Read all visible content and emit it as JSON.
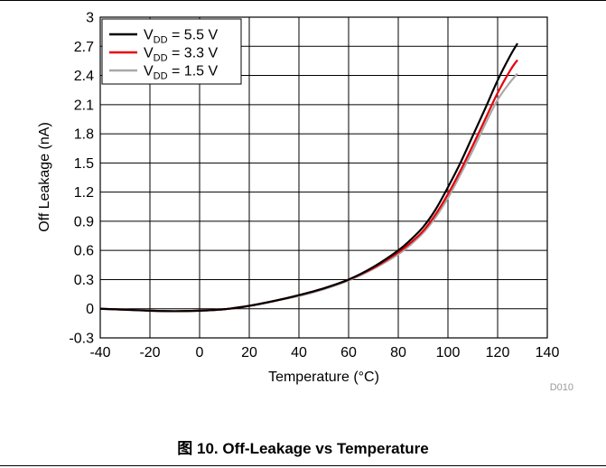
{
  "figure": {
    "caption": "图 10. Off-Leakage vs Temperature",
    "code": "D010"
  },
  "chart_data": {
    "type": "line",
    "title": "",
    "xlabel": "Temperature (°C)",
    "ylabel": "Off Leakage (nA)",
    "xlim": [
      -40,
      140
    ],
    "ylim": [
      -0.3,
      3
    ],
    "xticks": [
      -40,
      -20,
      0,
      20,
      40,
      60,
      80,
      100,
      120,
      140
    ],
    "yticks": [
      -0.3,
      0,
      0.3,
      0.6,
      0.9,
      1.2,
      1.5,
      1.8,
      2.1,
      2.4,
      2.7,
      3
    ],
    "ytick_labels": [
      "-0.3",
      "0",
      "0.3",
      "0.6",
      "0.9",
      "1.2",
      "1.5",
      "1.8",
      "2.1",
      "2.4",
      "2.7",
      "3"
    ],
    "grid": true,
    "legend_position": "top-left",
    "series": [
      {
        "name": "VDD = 5.5 V",
        "label_main": "V",
        "label_sub": "DD",
        "label_rest": " = 5.5 V",
        "color": "#000000",
        "x": [
          -40,
          -30,
          -20,
          -10,
          0,
          10,
          20,
          30,
          40,
          50,
          60,
          70,
          80,
          85,
          90,
          95,
          100,
          105,
          110,
          115,
          120,
          125,
          128
        ],
        "y": [
          0.0,
          -0.01,
          -0.02,
          -0.025,
          -0.02,
          -0.005,
          0.03,
          0.08,
          0.14,
          0.21,
          0.3,
          0.43,
          0.6,
          0.71,
          0.84,
          1.02,
          1.25,
          1.5,
          1.78,
          2.06,
          2.35,
          2.6,
          2.73
        ]
      },
      {
        "name": "VDD = 3.3 V",
        "label_main": "V",
        "label_sub": "DD",
        "label_rest": " = 3.3 V",
        "color": "#e8000b",
        "x": [
          -40,
          -30,
          -20,
          -10,
          0,
          10,
          20,
          30,
          40,
          50,
          60,
          70,
          80,
          85,
          90,
          95,
          100,
          105,
          110,
          115,
          120,
          125,
          128
        ],
        "y": [
          0.0,
          -0.01,
          -0.02,
          -0.025,
          -0.02,
          -0.005,
          0.03,
          0.08,
          0.14,
          0.21,
          0.3,
          0.42,
          0.58,
          0.68,
          0.8,
          0.97,
          1.18,
          1.42,
          1.68,
          1.95,
          2.22,
          2.45,
          2.56
        ]
      },
      {
        "name": "VDD = 1.5 V",
        "label_main": "V",
        "label_sub": "DD",
        "label_rest": " = 1.5 V",
        "color": "#a8a8a8",
        "x": [
          -40,
          -30,
          -20,
          -10,
          0,
          10,
          20,
          30,
          40,
          50,
          60,
          70,
          80,
          85,
          90,
          95,
          100,
          105,
          110,
          115,
          120,
          125,
          128
        ],
        "y": [
          0.0,
          -0.01,
          -0.02,
          -0.025,
          -0.02,
          -0.005,
          0.03,
          0.08,
          0.13,
          0.2,
          0.29,
          0.41,
          0.56,
          0.66,
          0.78,
          0.94,
          1.14,
          1.38,
          1.63,
          1.9,
          2.15,
          2.33,
          2.42
        ]
      }
    ]
  }
}
